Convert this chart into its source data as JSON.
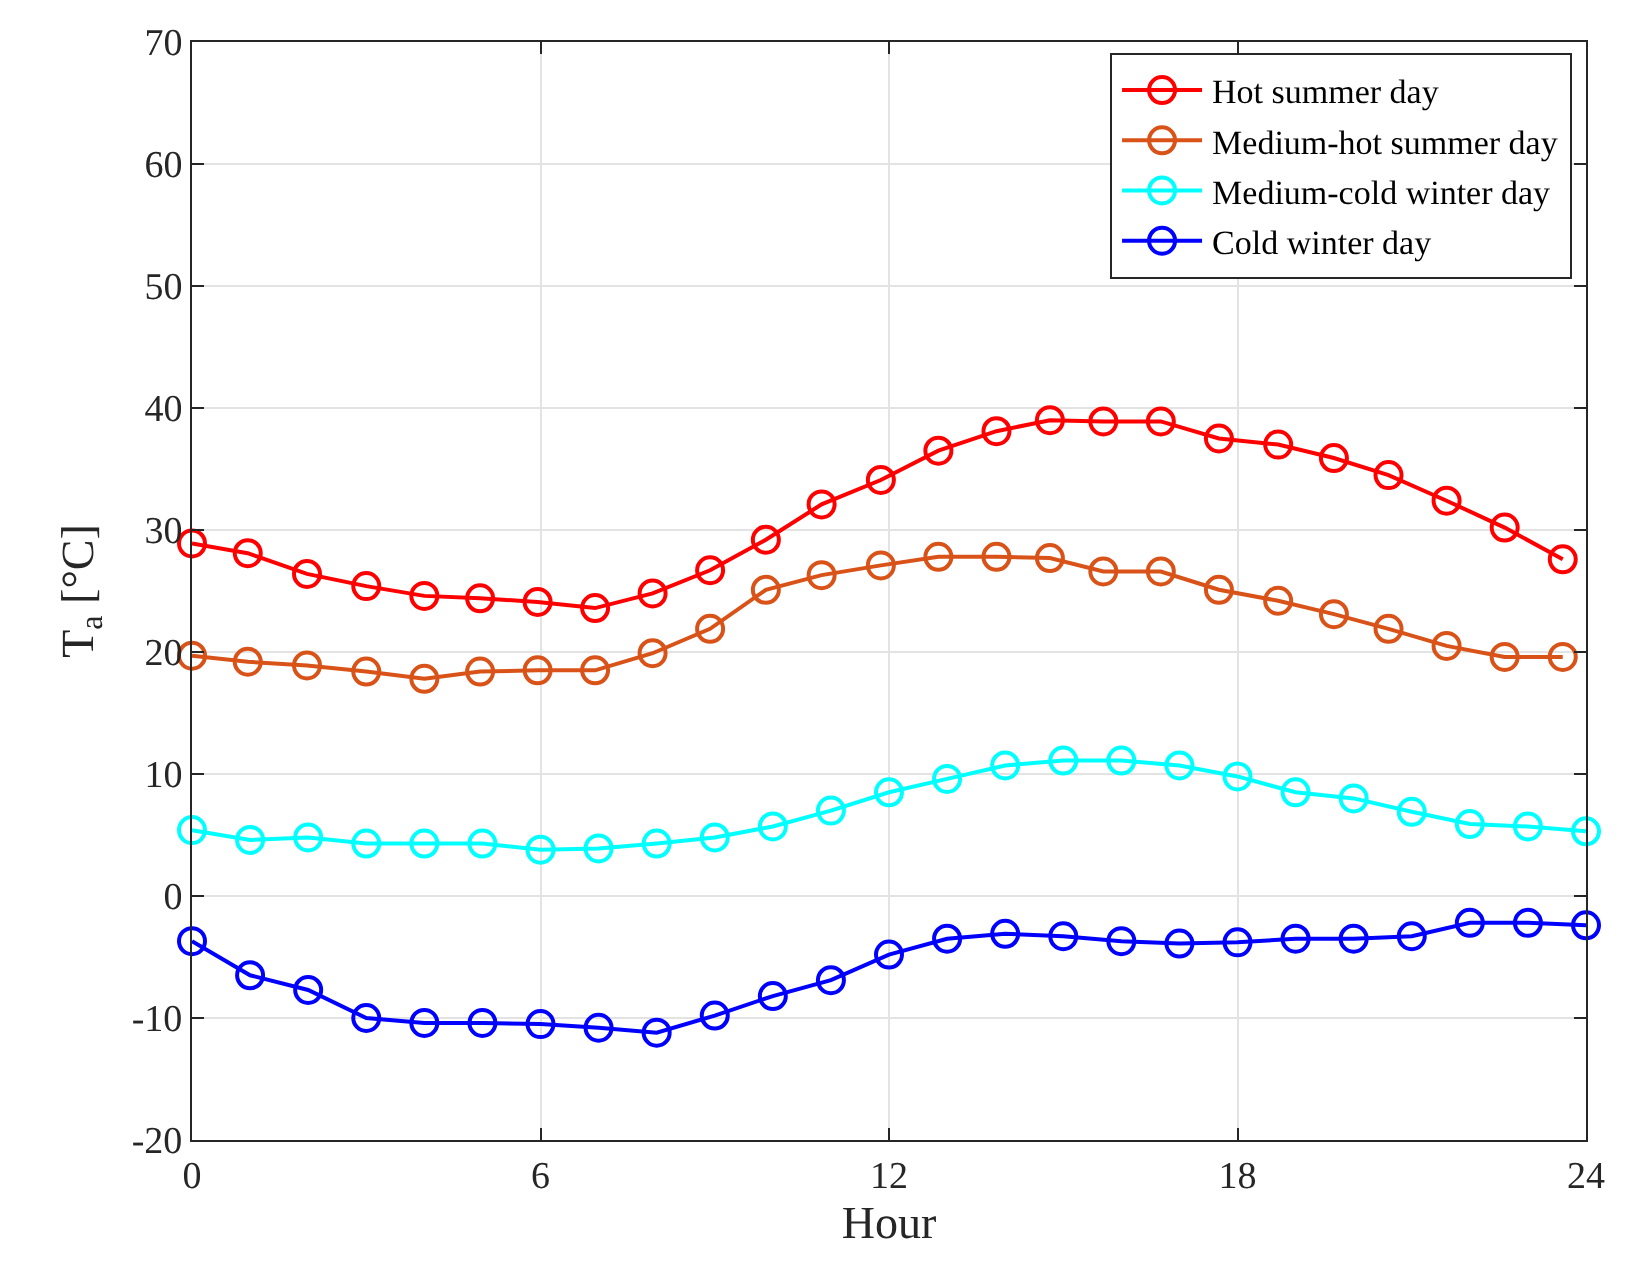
{
  "chart_data": {
    "type": "line",
    "xlabel": "Hour",
    "ylabel": "T$_{a}$ [°C]",
    "xlim": [
      0,
      24
    ],
    "xticks": [
      0,
      6,
      12,
      18,
      24
    ],
    "ylim": [
      -20,
      70
    ],
    "yticks": [
      -20,
      -10,
      0,
      10,
      20,
      30,
      40,
      50,
      60,
      70
    ],
    "grid": true,
    "legend": "top right",
    "marker": "circle",
    "line_style": "solid",
    "series": [
      {
        "name": "Hot summer day",
        "color": "#ff0000",
        "x": [
          0,
          0.96,
          1.98,
          3,
          4,
          4.96,
          5.95,
          6.94,
          7.93,
          8.92,
          9.88,
          10.84,
          11.86,
          12.85,
          13.85,
          14.77,
          15.69,
          16.68,
          17.68,
          18.7,
          19.66,
          20.6,
          21.6,
          22.6,
          23.6
        ],
        "values": [
          28.9,
          28.1,
          26.4,
          25.4,
          24.6,
          24.4,
          24.1,
          23.6,
          24.8,
          26.7,
          29.2,
          32.1,
          34.1,
          36.5,
          38.1,
          39.0,
          38.9,
          38.9,
          37.5,
          37.0,
          35.9,
          34.5,
          32.4,
          30.2,
          27.6
        ]
      },
      {
        "name": "Medium-hot summer day",
        "color": "#d95319",
        "x": [
          0,
          0.96,
          1.98,
          3,
          4,
          4.96,
          5.95,
          6.94,
          7.93,
          8.92,
          9.88,
          10.84,
          11.86,
          12.85,
          13.85,
          14.77,
          15.69,
          16.68,
          17.68,
          18.7,
          19.66,
          20.6,
          21.6,
          22.6,
          23.6
        ],
        "values": [
          19.7,
          19.2,
          18.9,
          18.4,
          17.8,
          18.4,
          18.5,
          18.5,
          19.9,
          21.9,
          25.1,
          26.3,
          27.1,
          27.8,
          27.8,
          27.7,
          26.6,
          26.6,
          25.1,
          24.2,
          23.1,
          21.9,
          20.5,
          19.6,
          19.6
        ]
      },
      {
        "name": "Medium-cold winter day",
        "color": "#00ffff",
        "x": [
          0,
          1,
          2,
          3,
          4,
          5,
          6,
          7,
          8,
          9,
          10,
          11,
          12,
          13,
          14,
          15,
          16,
          17,
          18,
          19,
          20,
          21,
          22,
          23,
          24
        ],
        "values": [
          5.4,
          4.6,
          4.8,
          4.3,
          4.3,
          4.3,
          3.8,
          3.9,
          4.3,
          4.8,
          5.7,
          7.0,
          8.5,
          9.6,
          10.7,
          11.1,
          11.1,
          10.7,
          9.8,
          8.5,
          8.0,
          6.9,
          5.9,
          5.7,
          5.3
        ]
      },
      {
        "name": "Cold winter day",
        "color": "#0000ff",
        "x": [
          0,
          1,
          2,
          3,
          4,
          5,
          6,
          7,
          8,
          9,
          10,
          11,
          12,
          13,
          14,
          15,
          16,
          17,
          18,
          19,
          20,
          21,
          22,
          23,
          24
        ],
        "values": [
          -3.7,
          -6.5,
          -7.7,
          -10.0,
          -10.4,
          -10.4,
          -10.5,
          -10.8,
          -11.2,
          -9.8,
          -8.2,
          -6.9,
          -4.8,
          -3.5,
          -3.1,
          -3.3,
          -3.7,
          -3.9,
          -3.8,
          -3.5,
          -3.5,
          -3.3,
          -2.2,
          -2.2,
          -2.4
        ]
      }
    ]
  }
}
